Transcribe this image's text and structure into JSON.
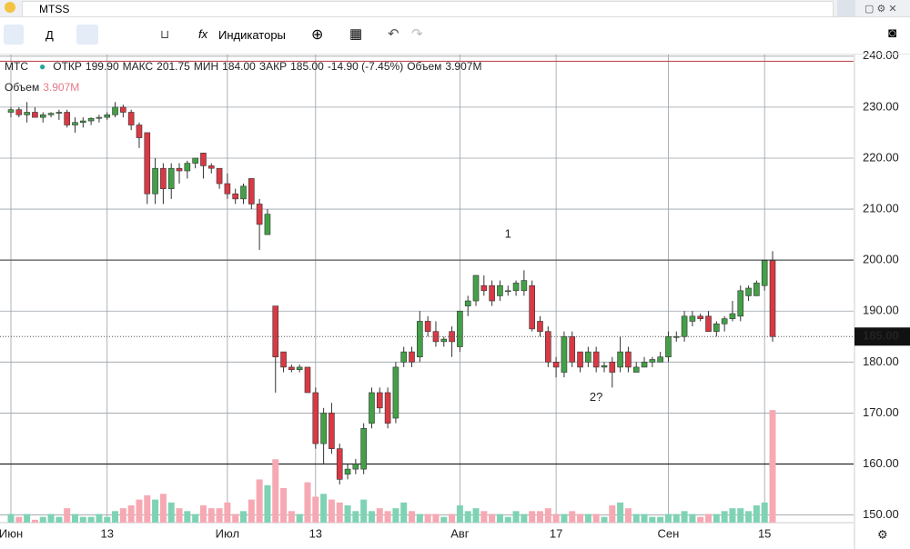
{
  "search": {
    "query": "MTSS"
  },
  "toolbar": {
    "interval": "Д",
    "fx": "fx",
    "indicators": "Индикаторы"
  },
  "legend": {
    "symbol": "MTC",
    "open_label": "ОТКР",
    "open": "199.90",
    "high_label": "МАКС",
    "high": "201.75",
    "low_label": "МИН",
    "low": "184.00",
    "close_label": "ЗАКР",
    "close": "185.00",
    "change": "-14.90 (-7.45%)",
    "volume_label": "Объем",
    "volume": "3.907M",
    "volume_row_label": "Объем",
    "volume_row_value": "3.907M"
  },
  "chart_data": {
    "type": "candlestick",
    "categories": [
      "Июн",
      null,
      null,
      null,
      null,
      null,
      null,
      null,
      null,
      null,
      null,
      null,
      "13",
      null,
      null,
      null,
      null,
      null,
      null,
      null,
      null,
      null,
      null,
      null,
      null,
      null,
      null,
      "Июл",
      null,
      null,
      null,
      null,
      null,
      null,
      null,
      null,
      null,
      null,
      "13",
      null,
      null,
      null,
      null,
      null,
      null,
      null,
      null,
      null,
      null,
      null,
      null,
      null,
      null,
      null,
      null,
      null,
      "Авг",
      null,
      null,
      null,
      null,
      null,
      null,
      null,
      null,
      null,
      null,
      null,
      "17",
      null,
      null,
      null,
      null,
      null,
      null,
      null,
      null,
      null,
      null,
      null,
      null,
      null,
      "Сен",
      null,
      null,
      null,
      null,
      null,
      null,
      null,
      null,
      null,
      null,
      null,
      "15",
      null
    ],
    "candles": [
      {
        "o": 229,
        "h": 230,
        "l": 228,
        "c": 229.5,
        "v": 0.3
      },
      {
        "o": 229.5,
        "h": 230,
        "l": 228,
        "c": 228.5,
        "v": 0.2
      },
      {
        "o": 228.5,
        "h": 231,
        "l": 227,
        "c": 229,
        "v": 0.3
      },
      {
        "o": 229,
        "h": 230,
        "l": 228,
        "c": 228,
        "v": 0.1
      },
      {
        "o": 228,
        "h": 229,
        "l": 227,
        "c": 228.5,
        "v": 0.2
      },
      {
        "o": 228.5,
        "h": 229,
        "l": 228,
        "c": 228.8,
        "v": 0.3
      },
      {
        "o": 228.8,
        "h": 229.5,
        "l": 227.5,
        "c": 229,
        "v": 0.2
      },
      {
        "o": 229,
        "h": 229.5,
        "l": 226,
        "c": 226.5,
        "v": 0.5
      },
      {
        "o": 226.5,
        "h": 228,
        "l": 225,
        "c": 227,
        "v": 0.3
      },
      {
        "o": 227,
        "h": 228,
        "l": 226,
        "c": 227.3,
        "v": 0.2
      },
      {
        "o": 227.3,
        "h": 228,
        "l": 226.5,
        "c": 227.8,
        "v": 0.2
      },
      {
        "o": 227.8,
        "h": 228.5,
        "l": 227,
        "c": 228,
        "v": 0.3
      },
      {
        "o": 228,
        "h": 229,
        "l": 227.5,
        "c": 228.5,
        "v": 0.2
      },
      {
        "o": 228.5,
        "h": 231,
        "l": 228,
        "c": 230,
        "v": 0.4
      },
      {
        "o": 230,
        "h": 230.5,
        "l": 228,
        "c": 229,
        "v": 0.5
      },
      {
        "o": 229,
        "h": 229.5,
        "l": 225.5,
        "c": 226.5,
        "v": 0.6
      },
      {
        "o": 226.5,
        "h": 227,
        "l": 222,
        "c": 224,
        "v": 0.8
      },
      {
        "o": 225,
        "h": 225,
        "l": 211,
        "c": 213,
        "v": 0.95
      },
      {
        "o": 213,
        "h": 220,
        "l": 211,
        "c": 218,
        "v": 0.8
      },
      {
        "o": 218,
        "h": 219,
        "l": 211,
        "c": 214,
        "v": 1.0
      },
      {
        "o": 214,
        "h": 219,
        "l": 212,
        "c": 218,
        "v": 0.7
      },
      {
        "o": 218,
        "h": 219,
        "l": 215,
        "c": 217.5,
        "v": 0.5
      },
      {
        "o": 217.5,
        "h": 219.5,
        "l": 216,
        "c": 219,
        "v": 0.4
      },
      {
        "o": 219,
        "h": 220,
        "l": 218,
        "c": 220,
        "v": 0.3
      },
      {
        "o": 221,
        "h": 221,
        "l": 216,
        "c": 218.5,
        "v": 0.6
      },
      {
        "o": 218.5,
        "h": 219,
        "l": 217,
        "c": 218,
        "v": 0.5
      },
      {
        "o": 218,
        "h": 218,
        "l": 214,
        "c": 215,
        "v": 0.5
      },
      {
        "o": 215,
        "h": 217,
        "l": 212,
        "c": 213,
        "v": 0.7
      },
      {
        "o": 213,
        "h": 214,
        "l": 211,
        "c": 212,
        "v": 0.3
      },
      {
        "o": 212,
        "h": 215,
        "l": 211,
        "c": 214.5,
        "v": 0.4
      },
      {
        "o": 216,
        "h": 216,
        "l": 210,
        "c": 211,
        "v": 0.8
      },
      {
        "o": 211,
        "h": 212,
        "l": 202,
        "c": 207,
        "v": 1.5
      },
      {
        "o": 205,
        "h": 210,
        "l": 205,
        "c": 209,
        "v": 1.3
      },
      {
        "o": 191,
        "h": 191,
        "l": 174,
        "c": 181,
        "v": 2.2
      },
      {
        "o": 182,
        "h": 182,
        "l": 178,
        "c": 179,
        "v": 1.2
      },
      {
        "o": 179,
        "h": 179.5,
        "l": 178,
        "c": 178.5,
        "v": 0.4
      },
      {
        "o": 178.5,
        "h": 179.5,
        "l": 178,
        "c": 179,
        "v": 0.3
      },
      {
        "o": 179,
        "h": 179,
        "l": 174,
        "c": 174,
        "v": 1.4
      },
      {
        "o": 174,
        "h": 175,
        "l": 163,
        "c": 164,
        "v": 0.9
      },
      {
        "o": 164,
        "h": 171,
        "l": 160,
        "c": 170,
        "v": 1.0
      },
      {
        "o": 170,
        "h": 172,
        "l": 162,
        "c": 163,
        "v": 0.8
      },
      {
        "o": 163,
        "h": 164,
        "l": 156,
        "c": 157,
        "v": 0.7
      },
      {
        "o": 158,
        "h": 160,
        "l": 157,
        "c": 159,
        "v": 0.6
      },
      {
        "o": 159,
        "h": 161,
        "l": 158,
        "c": 160,
        "v": 0.4
      },
      {
        "o": 159,
        "h": 168,
        "l": 158,
        "c": 167,
        "v": 0.8
      },
      {
        "o": 168,
        "h": 175,
        "l": 167,
        "c": 174,
        "v": 0.4
      },
      {
        "o": 174,
        "h": 175,
        "l": 170,
        "c": 171,
        "v": 0.5
      },
      {
        "o": 174,
        "h": 175,
        "l": 167,
        "c": 168,
        "v": 0.4
      },
      {
        "o": 169,
        "h": 180,
        "l": 168,
        "c": 179,
        "v": 0.5
      },
      {
        "o": 180,
        "h": 183,
        "l": 179,
        "c": 182,
        "v": 0.7
      },
      {
        "o": 182,
        "h": 183,
        "l": 179,
        "c": 180,
        "v": 0.4
      },
      {
        "o": 181,
        "h": 190,
        "l": 180,
        "c": 188,
        "v": 0.3
      },
      {
        "o": 188,
        "h": 189,
        "l": 185,
        "c": 186,
        "v": 0.3
      },
      {
        "o": 186,
        "h": 188,
        "l": 183,
        "c": 184,
        "v": 0.3
      },
      {
        "o": 184,
        "h": 185,
        "l": 183,
        "c": 184.5,
        "v": 0.2
      },
      {
        "o": 186,
        "h": 187,
        "l": 181,
        "c": 184,
        "v": 0.3
      },
      {
        "o": 183,
        "h": 190,
        "l": 182,
        "c": 190,
        "v": 0.6
      },
      {
        "o": 191,
        "h": 193,
        "l": 189,
        "c": 192,
        "v": 0.4
      },
      {
        "o": 192,
        "h": 197,
        "l": 191,
        "c": 197,
        "v": 0.5
      },
      {
        "o": 195,
        "h": 197,
        "l": 193,
        "c": 194,
        "v": 0.4
      },
      {
        "o": 195,
        "h": 196,
        "l": 191,
        "c": 192,
        "v": 0.3
      },
      {
        "o": 193,
        "h": 196,
        "l": 192,
        "c": 195,
        "v": 0.3
      },
      {
        "o": 194,
        "h": 195,
        "l": 193,
        "c": 194,
        "v": 0.2
      },
      {
        "o": 194,
        "h": 196,
        "l": 193,
        "c": 195.5,
        "v": 0.4
      },
      {
        "o": 194,
        "h": 198,
        "l": 193,
        "c": 196,
        "v": 0.3
      },
      {
        "o": 195,
        "h": 196,
        "l": 186,
        "c": 186.5,
        "v": 0.4
      },
      {
        "o": 188,
        "h": 189,
        "l": 185,
        "c": 186,
        "v": 0.4
      },
      {
        "o": 186,
        "h": 187,
        "l": 179,
        "c": 180,
        "v": 0.5
      },
      {
        "o": 180,
        "h": 181,
        "l": 177,
        "c": 179,
        "v": 0.3
      },
      {
        "o": 178,
        "h": 186,
        "l": 177,
        "c": 185,
        "v": 0.3
      },
      {
        "o": 185,
        "h": 186,
        "l": 179,
        "c": 180,
        "v": 0.4
      },
      {
        "o": 182,
        "h": 182,
        "l": 178,
        "c": 179,
        "v": 0.3
      },
      {
        "o": 180,
        "h": 183,
        "l": 179,
        "c": 182,
        "v": 0.3
      },
      {
        "o": 182,
        "h": 183,
        "l": 178,
        "c": 179,
        "v": 0.3
      },
      {
        "o": 179,
        "h": 180,
        "l": 178,
        "c": 179.3,
        "v": 0.2
      },
      {
        "o": 180,
        "h": 181,
        "l": 175,
        "c": 178,
        "v": 0.6
      },
      {
        "o": 179,
        "h": 185,
        "l": 178,
        "c": 182,
        "v": 0.7
      },
      {
        "o": 182,
        "h": 183,
        "l": 178,
        "c": 179,
        "v": 0.5
      },
      {
        "o": 178,
        "h": 180,
        "l": 178,
        "c": 179,
        "v": 0.3
      },
      {
        "o": 179,
        "h": 181,
        "l": 179,
        "c": 180,
        "v": 0.3
      },
      {
        "o": 180,
        "h": 181,
        "l": 179,
        "c": 180.5,
        "v": 0.2
      },
      {
        "o": 180,
        "h": 182,
        "l": 180,
        "c": 181,
        "v": 0.2
      },
      {
        "o": 181,
        "h": 186,
        "l": 180,
        "c": 185,
        "v": 0.3
      },
      {
        "o": 185,
        "h": 186,
        "l": 184,
        "c": 185,
        "v": 0.3
      },
      {
        "o": 185,
        "h": 190,
        "l": 184,
        "c": 189,
        "v": 0.4
      },
      {
        "o": 188,
        "h": 190,
        "l": 187,
        "c": 189,
        "v": 0.3
      },
      {
        "o": 189,
        "h": 189.5,
        "l": 188,
        "c": 188.5,
        "v": 0.2
      },
      {
        "o": 189,
        "h": 190,
        "l": 186,
        "c": 186,
        "v": 0.3
      },
      {
        "o": 186,
        "h": 188,
        "l": 185,
        "c": 187.5,
        "v": 0.3
      },
      {
        "o": 187.5,
        "h": 189,
        "l": 186,
        "c": 188.5,
        "v": 0.4
      },
      {
        "o": 188.5,
        "h": 192,
        "l": 188,
        "c": 189.5,
        "v": 0.5
      },
      {
        "o": 189,
        "h": 195,
        "l": 188,
        "c": 194,
        "v": 0.5
      },
      {
        "o": 193,
        "h": 195,
        "l": 192,
        "c": 194.5,
        "v": 0.4
      },
      {
        "o": 193,
        "h": 196,
        "l": 193,
        "c": 195.5,
        "v": 0.6
      },
      {
        "o": 195,
        "h": 200,
        "l": 194,
        "c": 199.9,
        "v": 0.7
      },
      {
        "o": 199.9,
        "h": 201.75,
        "l": 184,
        "c": 185,
        "v": 3.907
      }
    ],
    "up_color": "#43a047",
    "down_color": "#d93945",
    "up_volume_color": "#7fd3b5",
    "down_volume_color": "#f6a9b3",
    "ylim": [
      148.5,
      240.5
    ],
    "yticks": [
      {
        "value": 150,
        "label": "150.00"
      },
      {
        "value": 160,
        "label": "160.00"
      },
      {
        "value": 170,
        "label": "170.00"
      },
      {
        "value": 180,
        "label": "180.00"
      },
      {
        "value": 190,
        "label": "190.00"
      },
      {
        "value": 200,
        "label": "200.00"
      },
      {
        "value": 210,
        "label": "210.00"
      },
      {
        "value": 220,
        "label": "220.00"
      },
      {
        "value": 230,
        "label": "230.00"
      },
      {
        "value": 240,
        "label": "240.00"
      }
    ],
    "last_price": {
      "value": 185,
      "label": "185.00"
    },
    "lines": [
      {
        "value": 160,
        "color": "#222222"
      },
      {
        "value": 200,
        "color": "#555555"
      },
      {
        "value": 239,
        "color": "#c0505a"
      }
    ],
    "annotations": [
      {
        "text": "1",
        "x": 62,
        "y": 205
      },
      {
        "text": "2?",
        "x": 73,
        "y": 173
      }
    ],
    "grid": true
  }
}
